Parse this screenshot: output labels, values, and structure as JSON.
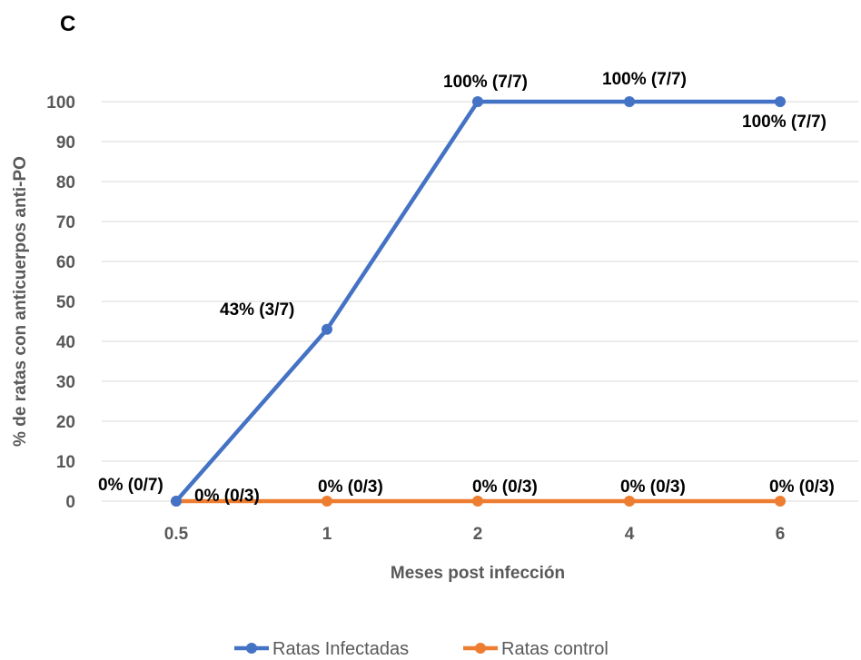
{
  "chart_data": {
    "type": "line",
    "panel_label": "C",
    "title": "",
    "xlabel": "Meses post infección",
    "ylabel": "% de ratas con anticuerpos anti-PO",
    "categories": [
      "0.5",
      "1",
      "2",
      "4",
      "6"
    ],
    "ylim": [
      0,
      100
    ],
    "yticks": [
      "0",
      "10",
      "20",
      "30",
      "40",
      "50",
      "60",
      "70",
      "80",
      "90",
      "100"
    ],
    "grid": true,
    "legend_position": "bottom",
    "series": [
      {
        "name": "Ratas Infectadas",
        "color": "#4472C4",
        "values": [
          0,
          43,
          100,
          100,
          100
        ],
        "labels": [
          "0% (0/7)",
          "43% (3/7)",
          "100% (7/7)",
          "100% (7/7)",
          "100% (7/7)"
        ]
      },
      {
        "name": "Ratas control",
        "color": "#ED7D31",
        "values": [
          0,
          0,
          0,
          0,
          0
        ],
        "labels": [
          "0% (0/3)",
          "0% (0/3)",
          "0% (0/3)",
          "0% (0/3)",
          "0% (0/3)"
        ]
      }
    ]
  }
}
